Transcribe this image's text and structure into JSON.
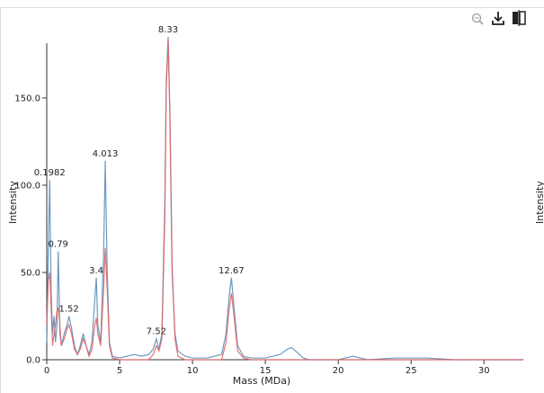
{
  "chart_data": {
    "type": "line",
    "x_label": "Mass (MDa)",
    "y_label": "Intensity",
    "y2_label": "Intensity",
    "x": [
      0,
      0.1,
      0.2,
      0.3,
      0.4,
      0.5,
      0.6,
      0.7,
      0.79,
      0.9,
      1.0,
      1.2,
      1.4,
      1.52,
      1.7,
      1.9,
      2.1,
      2.3,
      2.5,
      2.7,
      2.9,
      3.1,
      3.3,
      3.4,
      3.5,
      3.7,
      3.9,
      4.013,
      4.15,
      4.3,
      4.5,
      5.0,
      5.5,
      6.0,
      6.5,
      7.0,
      7.3,
      7.52,
      7.7,
      7.9,
      8.1,
      8.2,
      8.33,
      8.45,
      8.6,
      8.8,
      9.0,
      9.5,
      10,
      11,
      11.5,
      12,
      12.3,
      12.5,
      12.67,
      12.85,
      13.1,
      13.5,
      14,
      15,
      16,
      16.5,
      16.8,
      17.2,
      17.6,
      18,
      20,
      21,
      21.5,
      22,
      24,
      26,
      28,
      30,
      32.7
    ],
    "series": [
      {
        "color": "#5b8fb9",
        "values": [
          10,
          60,
          103,
          40,
          15,
          25,
          10,
          20,
          62,
          15,
          8,
          15,
          20,
          25,
          18,
          8,
          3,
          8,
          15,
          8,
          3,
          10,
          35,
          47,
          20,
          10,
          60,
          114,
          50,
          10,
          2,
          1,
          2,
          3,
          2,
          3,
          6,
          12,
          6,
          15,
          90,
          160,
          185,
          140,
          50,
          15,
          5,
          2,
          1,
          1,
          2,
          3,
          15,
          35,
          47,
          30,
          8,
          2,
          1,
          1,
          3,
          6,
          7,
          4,
          1,
          0,
          0,
          2,
          1,
          0,
          1,
          1,
          0,
          0,
          0
        ]
      },
      {
        "color": "#e06666",
        "values": [
          20,
          45,
          50,
          30,
          8,
          15,
          20,
          28,
          30,
          20,
          8,
          12,
          18,
          20,
          15,
          6,
          3,
          6,
          12,
          8,
          2,
          6,
          20,
          24,
          15,
          8,
          40,
          64,
          40,
          8,
          1,
          0,
          0,
          0,
          0,
          0,
          3,
          8,
          5,
          12,
          80,
          155,
          183,
          140,
          55,
          12,
          2,
          0,
          0,
          0,
          0,
          0,
          10,
          28,
          38,
          25,
          5,
          1,
          0,
          0,
          0,
          0,
          0,
          0,
          0,
          0,
          0,
          0,
          0,
          0,
          0,
          0,
          0,
          0,
          0
        ]
      }
    ],
    "annotations": [
      {
        "text": "0.1982",
        "x": 0.1982,
        "y": 103
      },
      {
        "text": "0.79",
        "x": 0.79,
        "y": 62
      },
      {
        "text": "1.52",
        "x": 1.52,
        "y": 25
      },
      {
        "text": "3.4",
        "x": 3.4,
        "y": 47
      },
      {
        "text": "4.013",
        "x": 4.013,
        "y": 114
      },
      {
        "text": "7.52",
        "x": 7.52,
        "y": 12
      },
      {
        "text": "8.33",
        "x": 8.33,
        "y": 185
      },
      {
        "text": "12.67",
        "x": 12.67,
        "y": 47
      }
    ],
    "xlim": [
      0,
      32.7
    ],
    "ylim": [
      0,
      185
    ],
    "xticks": [
      0,
      5,
      10,
      15,
      20,
      25,
      30
    ],
    "yticks": [
      {
        "value": 0,
        "label": "0.0"
      },
      {
        "value": 50,
        "label": "50.0"
      },
      {
        "value": 100,
        "label": "100.0"
      },
      {
        "value": 150,
        "label": "150.0"
      }
    ]
  }
}
